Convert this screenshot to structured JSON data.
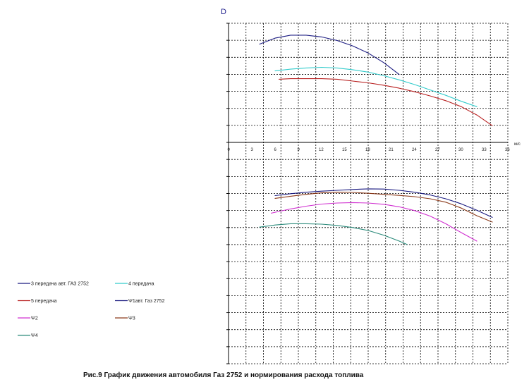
{
  "chart_data": {
    "type": "line",
    "caption": "Рис.9 График движения автомобиля Газ 2752  и нормирования расхода топлива",
    "ylabel": "D",
    "xlabel": "м/с",
    "x_ticks": [
      0,
      3,
      6,
      9,
      12,
      15,
      18,
      21,
      24,
      27,
      30,
      33,
      36
    ],
    "xlim": [
      0,
      36
    ],
    "grid": true,
    "upper_series": [
      {
        "name": "3 передача авт. ГАЗ 2752",
        "color": "#1a1a80",
        "points": [
          [
            4,
            0.825
          ],
          [
            6,
            0.875
          ],
          [
            8,
            0.9
          ],
          [
            10,
            0.9
          ],
          [
            12,
            0.885
          ],
          [
            14,
            0.855
          ],
          [
            16,
            0.81
          ],
          [
            18,
            0.75
          ],
          [
            20,
            0.67
          ],
          [
            22,
            0.57
          ]
        ]
      },
      {
        "name": "4 передача",
        "color": "#33cccc",
        "points": [
          [
            6,
            0.6
          ],
          [
            8,
            0.615
          ],
          [
            10,
            0.625
          ],
          [
            12,
            0.63
          ],
          [
            14,
            0.625
          ],
          [
            16,
            0.61
          ],
          [
            18,
            0.59
          ],
          [
            20,
            0.56
          ],
          [
            22,
            0.525
          ],
          [
            24,
            0.485
          ],
          [
            26,
            0.44
          ],
          [
            28,
            0.395
          ],
          [
            30,
            0.345
          ],
          [
            32,
            0.3
          ]
        ]
      },
      {
        "name": "5 передача",
        "color": "#b82020",
        "points": [
          [
            6.5,
            0.53
          ],
          [
            8,
            0.535
          ],
          [
            10,
            0.535
          ],
          [
            12,
            0.535
          ],
          [
            14,
            0.53
          ],
          [
            16,
            0.515
          ],
          [
            18,
            0.5
          ],
          [
            20,
            0.48
          ],
          [
            22,
            0.455
          ],
          [
            24,
            0.425
          ],
          [
            26,
            0.39
          ],
          [
            28,
            0.35
          ],
          [
            30,
            0.3
          ],
          [
            32,
            0.23
          ],
          [
            34,
            0.14
          ]
        ]
      }
    ],
    "lower_series": [
      {
        "name": "Ψ1авт. Газ 2752",
        "color": "#1a1a80",
        "points": [
          [
            6,
            0.375
          ],
          [
            8,
            0.42
          ],
          [
            10,
            0.455
          ],
          [
            12,
            0.48
          ],
          [
            14,
            0.5
          ],
          [
            16,
            0.52
          ],
          [
            18,
            0.535
          ],
          [
            20,
            0.53
          ],
          [
            22,
            0.5
          ],
          [
            24,
            0.455
          ],
          [
            26,
            0.39
          ],
          [
            28,
            0.3
          ],
          [
            30,
            0.18
          ],
          [
            32,
            0.03
          ],
          [
            34,
            -0.14
          ]
        ]
      },
      {
        "name": "Ψ2",
        "color": "#d030d0",
        "points": [
          [
            5.5,
            -0.04
          ],
          [
            8,
            0.06
          ],
          [
            10,
            0.125
          ],
          [
            12,
            0.175
          ],
          [
            14,
            0.2
          ],
          [
            16,
            0.21
          ],
          [
            18,
            0.2
          ],
          [
            20,
            0.17
          ],
          [
            22,
            0.11
          ],
          [
            24,
            0.02
          ],
          [
            26,
            -0.11
          ],
          [
            28,
            -0.29
          ],
          [
            30,
            -0.5
          ],
          [
            32,
            -0.7
          ]
        ]
      },
      {
        "name": "Ψ3",
        "color": "#8b3a1a",
        "points": [
          [
            6,
            0.31
          ],
          [
            8,
            0.36
          ],
          [
            10,
            0.405
          ],
          [
            12,
            0.44
          ],
          [
            14,
            0.455
          ],
          [
            16,
            0.45
          ],
          [
            18,
            0.43
          ],
          [
            20,
            0.405
          ],
          [
            22,
            0.38
          ],
          [
            24,
            0.35
          ],
          [
            26,
            0.3
          ],
          [
            28,
            0.22
          ],
          [
            30,
            0.08
          ],
          [
            32,
            -0.1
          ],
          [
            34,
            -0.25
          ]
        ]
      },
      {
        "name": "Ψ4",
        "color": "#2a8a7a",
        "points": [
          [
            4,
            -0.37
          ],
          [
            6,
            -0.32
          ],
          [
            8,
            -0.29
          ],
          [
            10,
            -0.29
          ],
          [
            12,
            -0.3
          ],
          [
            14,
            -0.33
          ],
          [
            16,
            -0.38
          ],
          [
            18,
            -0.45
          ],
          [
            20,
            -0.56
          ],
          [
            22,
            -0.7
          ],
          [
            23,
            -0.78
          ]
        ]
      }
    ],
    "legend": [
      {
        "label": "3 передача авт. ГАЗ 2752",
        "color": "#1a1a80"
      },
      {
        "label": "4 передача",
        "color": "#33cccc"
      },
      {
        "label": "5 передача",
        "color": "#b82020"
      },
      {
        "label": "Ψ1авт. Газ 2752",
        "color": "#1a1a80"
      },
      {
        "label": "Ψ2",
        "color": "#d030d0"
      },
      {
        "label": "Ψ3",
        "color": "#8b3a1a"
      },
      {
        "label": "Ψ4",
        "color": "#2a8a7a"
      }
    ]
  }
}
